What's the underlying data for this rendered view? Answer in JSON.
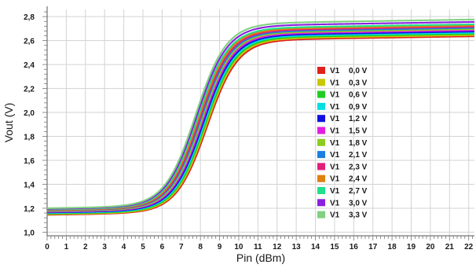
{
  "chart_data": {
    "type": "line",
    "title": "",
    "xlabel": "Pin (dBm)",
    "ylabel": "Vout (V)",
    "xlim": [
      0,
      22.3
    ],
    "ylim": [
      0.97,
      2.86
    ],
    "x_ticks": [
      "0",
      "1",
      "2",
      "3",
      "4",
      "5",
      "6",
      "7",
      "8",
      "9",
      "10",
      "11",
      "12",
      "13",
      "14",
      "15",
      "16",
      "17",
      "18",
      "19",
      "20",
      "21",
      "22"
    ],
    "y_ticks": [
      "1,0",
      "1,2",
      "1,4",
      "1,6",
      "1,8",
      "2,0",
      "2,2",
      "2,4",
      "2,6",
      "2,8"
    ],
    "grid": true,
    "legend_position": "right",
    "series": [
      {
        "name": "V1",
        "value": "0,0 V",
        "color": "#e0201c",
        "low": 1.145,
        "high": 2.58,
        "x0": 8.35
      },
      {
        "name": "V1",
        "value": "0,3 V",
        "color": "#c8c80a",
        "low": 1.15,
        "high": 2.59,
        "x0": 8.3
      },
      {
        "name": "V1",
        "value": "0,6 V",
        "color": "#22cc22",
        "low": 1.155,
        "high": 2.6,
        "x0": 8.25
      },
      {
        "name": "V1",
        "value": "0,9 V",
        "color": "#00e0e0",
        "low": 1.16,
        "high": 2.61,
        "x0": 8.2
      },
      {
        "name": "V1",
        "value": "1,2 V",
        "color": "#1010e0",
        "low": 1.165,
        "high": 2.62,
        "x0": 8.15
      },
      {
        "name": "V1",
        "value": "1,5 V",
        "color": "#e020e0",
        "low": 1.17,
        "high": 2.63,
        "x0": 8.1
      },
      {
        "name": "V1",
        "value": "1,8 V",
        "color": "#8ccc20",
        "low": 1.175,
        "high": 2.64,
        "x0": 8.05
      },
      {
        "name": "V1",
        "value": "2,1 V",
        "color": "#1a80e0",
        "low": 1.18,
        "high": 2.65,
        "x0": 8.0
      },
      {
        "name": "V1",
        "value": "2,3 V",
        "color": "#e0207a",
        "low": 1.183,
        "high": 2.66,
        "x0": 7.95
      },
      {
        "name": "V1",
        "value": "2,4 V",
        "color": "#e08010",
        "low": 1.186,
        "high": 2.67,
        "x0": 7.9
      },
      {
        "name": "V1",
        "value": "2,7 V",
        "color": "#20e08a",
        "low": 1.19,
        "high": 2.68,
        "x0": 7.85
      },
      {
        "name": "V1",
        "value": "3,0 V",
        "color": "#8a20e0",
        "low": 1.195,
        "high": 2.7,
        "x0": 7.8
      },
      {
        "name": "V1",
        "value": "3,3 V",
        "color": "#80d080",
        "low": 1.2,
        "high": 2.72,
        "x0": 7.75
      }
    ]
  }
}
